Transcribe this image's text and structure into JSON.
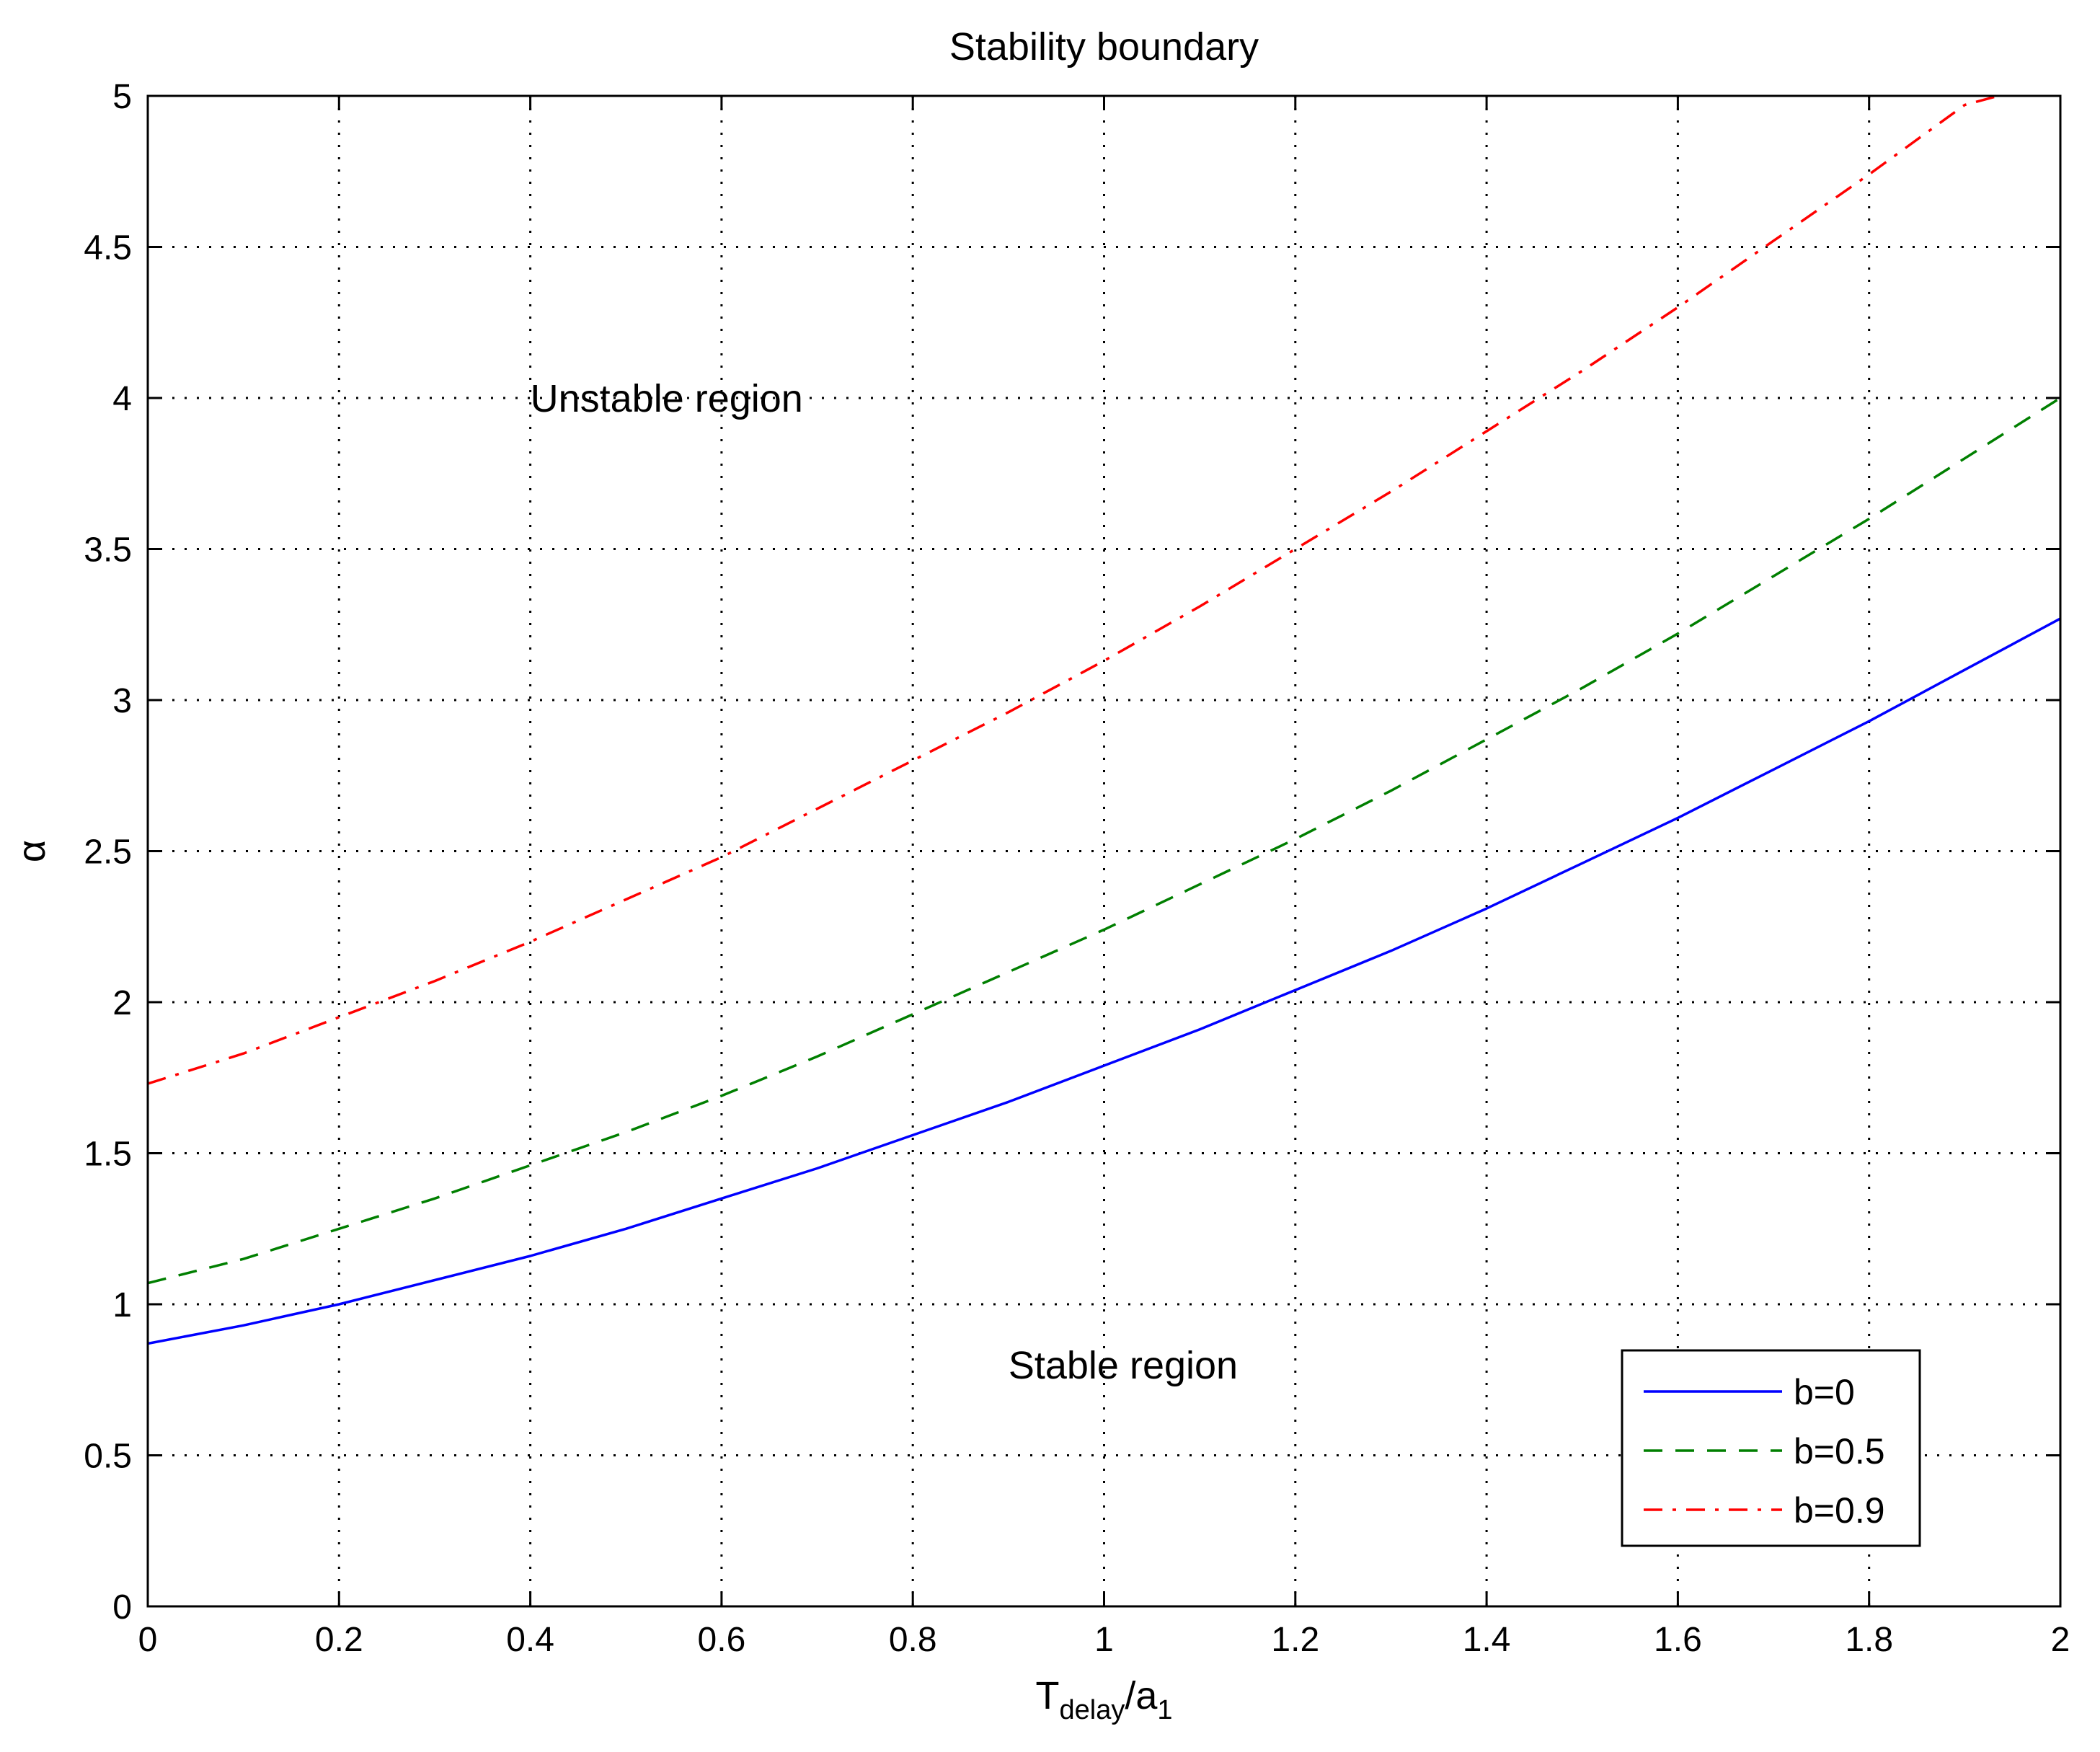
{
  "chart_data": {
    "type": "line",
    "title": "Stability boundary",
    "xlabel": {
      "base": "T",
      "sub1": "delay",
      "mid": "/a",
      "sub2": "1"
    },
    "ylabel": "α",
    "xlim": [
      0,
      2
    ],
    "ylim": [
      0,
      5
    ],
    "xticks": [
      0,
      0.2,
      0.4,
      0.6,
      0.8,
      1,
      1.2,
      1.4,
      1.6,
      1.8,
      2
    ],
    "xtick_labels": [
      "0",
      "0.2",
      "0.4",
      "0.6",
      "0.8",
      "1",
      "1.2",
      "1.4",
      "1.6",
      "1.8",
      "2"
    ],
    "yticks": [
      0,
      0.5,
      1,
      1.5,
      2,
      2.5,
      3,
      3.5,
      4,
      4.5,
      5
    ],
    "ytick_labels": [
      "0",
      "0.5",
      "1",
      "1.5",
      "2",
      "2.5",
      "3",
      "3.5",
      "4",
      "4.5",
      "5"
    ],
    "grid": true,
    "legend_position": "bottom-right",
    "annotations": [
      {
        "text": "Unstable region",
        "x": 0.4,
        "y": 4.0
      },
      {
        "text": "Stable region",
        "x": 0.9,
        "y": 0.8
      }
    ],
    "series": [
      {
        "name": "b=0",
        "color": "#0000ff",
        "style": "solid",
        "x": [
          0,
          0.1,
          0.2,
          0.3,
          0.4,
          0.5,
          0.6,
          0.7,
          0.8,
          0.9,
          1.0,
          1.1,
          1.2,
          1.3,
          1.4,
          1.5,
          1.6,
          1.7,
          1.8,
          1.9,
          2.0
        ],
        "y": [
          0.87,
          0.93,
          1.0,
          1.08,
          1.16,
          1.25,
          1.35,
          1.45,
          1.56,
          1.67,
          1.79,
          1.91,
          2.04,
          2.17,
          2.31,
          2.46,
          2.61,
          2.77,
          2.93,
          3.1,
          3.27
        ]
      },
      {
        "name": "b=0.5",
        "color": "#007f00",
        "style": "dashed",
        "x": [
          0,
          0.1,
          0.2,
          0.3,
          0.4,
          0.5,
          0.6,
          0.7,
          0.8,
          0.9,
          1.0,
          1.1,
          1.2,
          1.3,
          1.4,
          1.5,
          1.6,
          1.7,
          1.8,
          1.9,
          2.0
        ],
        "y": [
          1.07,
          1.15,
          1.25,
          1.35,
          1.46,
          1.57,
          1.69,
          1.82,
          1.96,
          2.1,
          2.24,
          2.39,
          2.54,
          2.7,
          2.87,
          3.04,
          3.22,
          3.41,
          3.6,
          3.8,
          4.0
        ]
      },
      {
        "name": "b=0.9",
        "color": "#ff0000",
        "style": "dashdot",
        "x": [
          0,
          0.1,
          0.2,
          0.3,
          0.4,
          0.5,
          0.6,
          0.7,
          0.8,
          0.9,
          1.0,
          1.1,
          1.2,
          1.3,
          1.4,
          1.5,
          1.6,
          1.7,
          1.8,
          1.9,
          1.935
        ],
        "y": [
          1.73,
          1.83,
          1.95,
          2.07,
          2.2,
          2.34,
          2.48,
          2.64,
          2.8,
          2.96,
          3.13,
          3.31,
          3.5,
          3.69,
          3.89,
          4.09,
          4.3,
          4.52,
          4.74,
          4.97,
          5.0
        ]
      }
    ]
  }
}
